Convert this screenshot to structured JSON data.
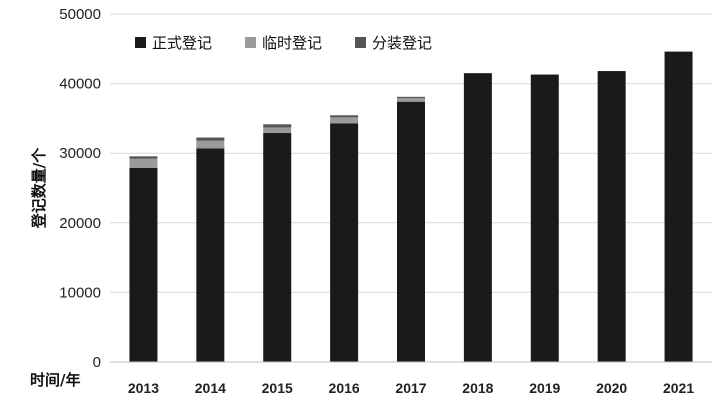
{
  "chart_data": {
    "type": "bar",
    "stacked": true,
    "categories": [
      "2013",
      "2014",
      "2015",
      "2016",
      "2017",
      "2018",
      "2019",
      "2020",
      "2021"
    ],
    "series": [
      {
        "name": "正式登记",
        "color": "#1a1a1a",
        "values": [
          27900,
          30700,
          32900,
          34300,
          37400,
          41500,
          41300,
          41800,
          44600
        ]
      },
      {
        "name": "临时登记",
        "color": "#9a9a9a",
        "values": [
          1300,
          1100,
          800,
          850,
          500,
          0,
          0,
          0,
          0
        ]
      },
      {
        "name": "分装登记",
        "color": "#555555",
        "values": [
          350,
          450,
          450,
          300,
          200,
          0,
          0,
          0,
          0
        ]
      }
    ],
    "ylim": [
      0,
      50000
    ],
    "yticks": [
      "0",
      "10000",
      "20000",
      "30000",
      "40000",
      "50000"
    ],
    "ylabel": "登记数量/个",
    "xlabel": "时间/年",
    "legend_position": "top-left",
    "grid": true
  }
}
